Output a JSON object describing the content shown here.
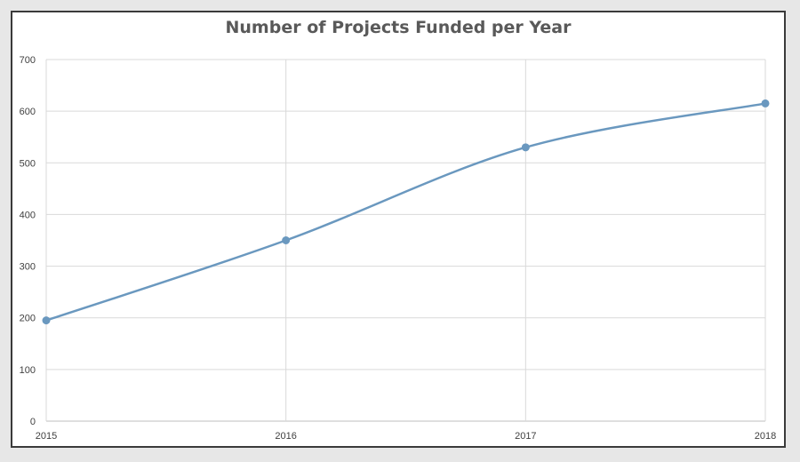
{
  "chart_data": {
    "type": "line",
    "title": "Number of Projects Funded per Year",
    "xlabel": "",
    "ylabel": "",
    "categories": [
      "2015",
      "2016",
      "2017",
      "2018"
    ],
    "series": [
      {
        "values": [
          195,
          350,
          530,
          615
        ],
        "color": "#6a98bf"
      }
    ],
    "ylim": [
      0,
      700
    ],
    "yticks": [
      0,
      100,
      200,
      300,
      400,
      500,
      600,
      700
    ],
    "grid": true,
    "smooth": true,
    "markers": true,
    "legend": "none"
  }
}
